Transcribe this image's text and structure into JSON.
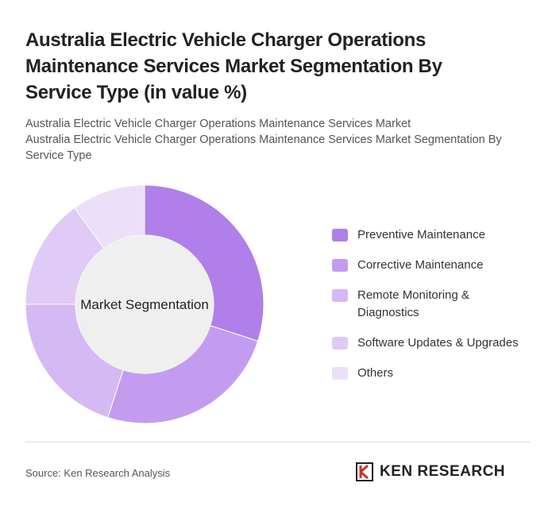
{
  "chart_data": {
    "type": "donut",
    "title": "Australia Electric Vehicle Charger Operations Maintenance Services Market Segmentation By Service Type (in value %)",
    "subtitle": [
      "Australia Electric Vehicle Charger Operations Maintenance Services Market",
      "Australia Electric Vehicle Charger Operations Maintenance Services Market Segmentation By Service Type"
    ],
    "center_label": "Market Segmentation",
    "categories": [
      "Preventive Maintenance",
      "Corrective Maintenance",
      "Remote Monitoring & Diagnostics",
      "Software Updates & Upgrades",
      "Others"
    ],
    "values": [
      30,
      25,
      20,
      15,
      10
    ],
    "colors": [
      "#b07fe9",
      "#c39cef",
      "#d4b9f4",
      "#dfcbf6",
      "#ebdff9"
    ]
  },
  "footer": {
    "source": "Source: Ken Research Analysis",
    "brand": "KEN RESEARCH"
  }
}
